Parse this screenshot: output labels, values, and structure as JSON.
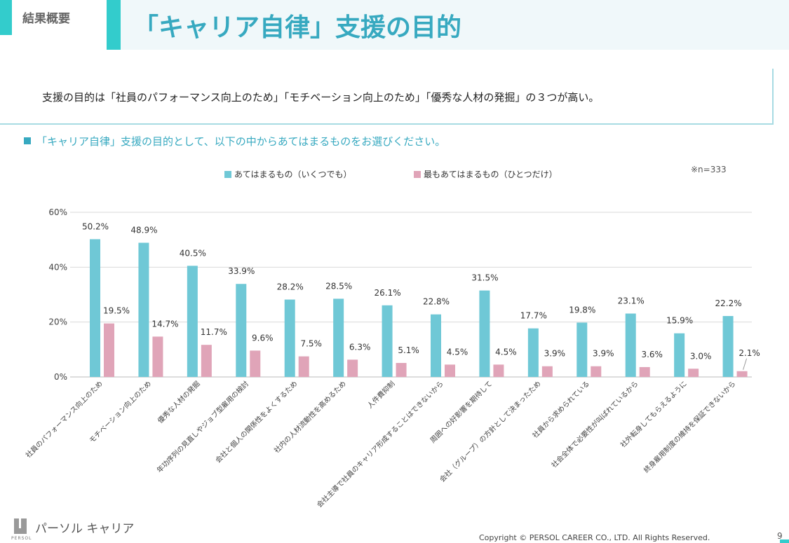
{
  "header": {
    "section": "結果概要",
    "title": "「キャリア自律」支援の目的"
  },
  "summary": "支援の目的は「社員のパフォーマンス向上のため」「モチベーション向上のため」「優秀な人材の発掘」の３つが高い。",
  "question": "「キャリア自律」支援の目的として、以下の中からあてはまるものをお選びください。",
  "sample": "※n=333",
  "footer": {
    "logo": "パーソル キャリア",
    "logo_sub": "PERSOL",
    "copyright": "Copyright © PERSOL CAREER CO., LTD. All Rights Reserved.",
    "page": "9"
  },
  "colors": {
    "series1": "#6fc8d6",
    "series2": "#e0a4b8",
    "accent": "#37a9c0"
  },
  "chart_data": {
    "type": "bar",
    "categories": [
      "社員のパフォーマンス向上のため",
      "モチベーション向上のため",
      "優秀な人材の発掘",
      "年功序列の見直しやジョブ型雇用の検討",
      "会社と個人の関係性をよくするため",
      "社内の人材流動性を高めるため",
      "人件費抑制",
      "会社主導で社員のキャリア形成することはできないから",
      "周囲への好影響を期待して",
      "会社（グループ）の方針として決まったため",
      "社員から求められている",
      "社会全体で必要性が叫ばれているから",
      "社外転身してもらえるように",
      "終身雇用制度の維持を保証できないから"
    ],
    "series": [
      {
        "name": "あてはまるもの（いくつでも）",
        "values": [
          50.2,
          48.9,
          40.5,
          33.9,
          28.2,
          28.5,
          26.1,
          22.8,
          31.5,
          17.7,
          19.8,
          23.1,
          15.9,
          22.2
        ]
      },
      {
        "name": "最もあてはまるもの（ひとつだけ）",
        "values": [
          19.5,
          14.7,
          11.7,
          9.6,
          7.5,
          6.3,
          5.1,
          4.5,
          4.5,
          3.9,
          3.9,
          3.6,
          3.0,
          2.1
        ]
      }
    ],
    "yticks": [
      "0%",
      "20%",
      "40%",
      "60%"
    ],
    "ylim": [
      0,
      60
    ],
    "grid": true,
    "legend": "top"
  }
}
